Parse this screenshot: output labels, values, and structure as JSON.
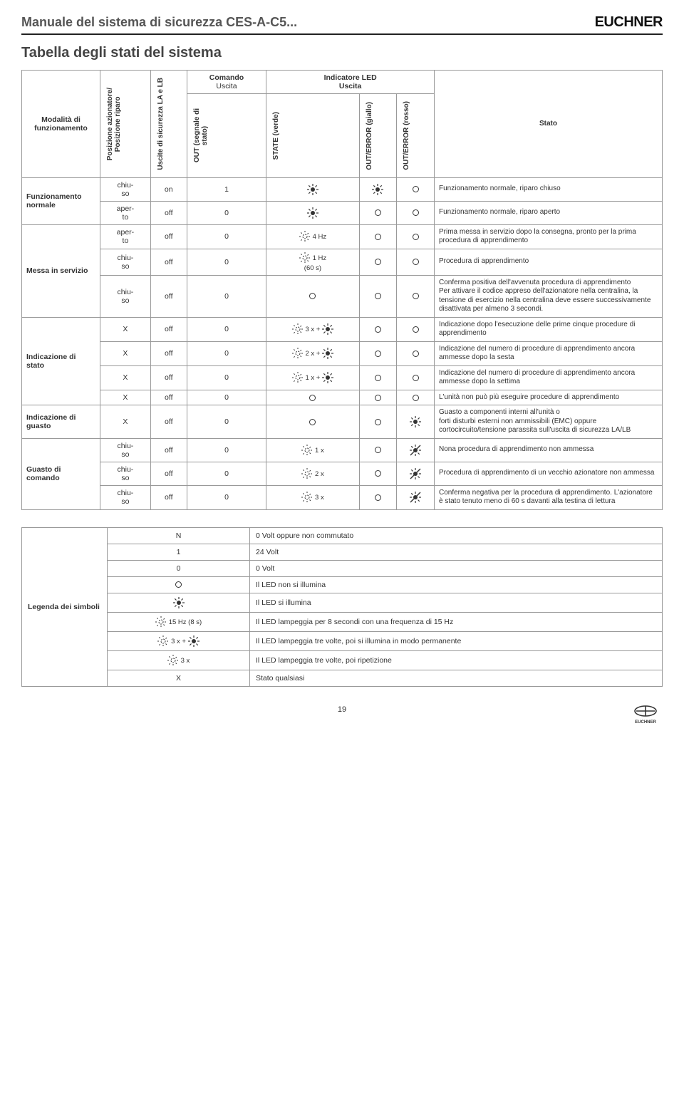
{
  "doc": {
    "title": "Manuale del sistema di sicurezza CES-A-C5...",
    "brand": "EUCHNER",
    "section_title": "Tabella degli stati del sistema",
    "page_number": "19"
  },
  "colors": {
    "text": "#222222",
    "border": "#999999",
    "header_rule": "#222222",
    "bg": "#ffffff"
  },
  "table_header": {
    "group_comando": "Comando",
    "group_uscita": "Uscita",
    "group_indicatore": "Indicatore LED\nUscita",
    "col_mode": "Modalità di funzionamento",
    "col_posizione": "Posizione azionatore/\nPosizione riparo",
    "col_uscite_sic": "Uscite di sicurezza LA e LB",
    "col_out_signal": "OUT (segnale di\nstato)",
    "col_state_verde": "STATE (verde)",
    "col_out_err_giallo": "OUT/ERROR (giallo)",
    "col_out_err_rosso": "OUT/ERROR (rosso)",
    "col_stato": "Stato"
  },
  "modes": {
    "funzionamento": "Funzionamento normale",
    "messa": "Messa in servizio",
    "ind_stato": "Indicazione di stato",
    "ind_guasto": "Indicazione di guasto",
    "guasto_comando": "Guasto di comando"
  },
  "rows": [
    {
      "mode": "funzionamento",
      "pos": "chiuso",
      "la_lb": "on",
      "out": "1",
      "state": "sun",
      "giallo": "sun",
      "rosso": "circ",
      "stato": "Funzionamento normale, riparo chiuso"
    },
    {
      "mode": "funzionamento",
      "pos": "aperto",
      "la_lb": "off",
      "out": "0",
      "state": "sun",
      "giallo": "circ",
      "rosso": "circ",
      "stato": "Funzionamento normale, riparo aperto"
    },
    {
      "mode": "messa",
      "pos": "aperto",
      "la_lb": "off",
      "out": "0",
      "state": "dsun",
      "state_extra": "4 Hz",
      "giallo": "circ",
      "rosso": "circ",
      "stato": "Prima messa in servizio dopo la consegna, pronto per la prima procedura di apprendimento"
    },
    {
      "mode": "messa",
      "pos": "chiuso",
      "la_lb": "off",
      "out": "0",
      "state": "dsun",
      "state_extra": "1 Hz\n(60 s)",
      "giallo": "circ",
      "rosso": "circ",
      "stato": "Procedura di apprendimento"
    },
    {
      "mode": "messa",
      "pos": "chiuso",
      "la_lb": "off",
      "out": "0",
      "state": "circ",
      "giallo": "circ",
      "rosso": "circ",
      "stato": "Conferma positiva dell'avvenuta procedura di apprendimento\nPer attivare il codice appreso dell'azionatore nella centralina, la tensione di esercizio nella centralina deve essere successivamente disattivata per almeno 3 secondi."
    },
    {
      "mode": "ind_stato",
      "pos": "X",
      "la_lb": "off",
      "out": "0",
      "state": "dsun_plus",
      "state_extra": "3 x +",
      "giallo": "circ",
      "rosso": "circ",
      "stato": "Indicazione dopo l'esecuzione delle prime cinque procedure di apprendimento"
    },
    {
      "mode": "ind_stato",
      "pos": "X",
      "la_lb": "off",
      "out": "0",
      "state": "dsun_plus",
      "state_extra": "2 x +",
      "giallo": "circ",
      "rosso": "circ",
      "stato": "Indicazione del numero di procedure di apprendimento ancora ammesse dopo la sesta"
    },
    {
      "mode": "ind_stato",
      "pos": "X",
      "la_lb": "off",
      "out": "0",
      "state": "dsun_plus",
      "state_extra": "1 x +",
      "giallo": "circ",
      "rosso": "circ",
      "stato": "Indicazione del numero di procedure di apprendimento ancora ammesse dopo la settima"
    },
    {
      "mode": "ind_stato",
      "pos": "X",
      "la_lb": "off",
      "out": "0",
      "state": "circ",
      "giallo": "circ",
      "rosso": "circ",
      "stato": "L'unità non può più eseguire procedure di apprendimento"
    },
    {
      "mode": "ind_guasto",
      "pos": "X",
      "la_lb": "off",
      "out": "0",
      "state": "circ",
      "giallo": "circ",
      "rosso": "sun",
      "stato": "Guasto a componenti interni all'unità o\nforti disturbi esterni non ammissibili (EMC) oppure cortocircuito/tensione parassita sull'uscita di sicurezza LA/LB"
    },
    {
      "mode": "guasto_comando",
      "pos": "chiuso",
      "la_lb": "off",
      "out": "0",
      "state": "dsun",
      "state_extra": "1 x",
      "giallo": "circ",
      "rosso": "sun_slash",
      "stato": "Nona procedura di apprendimento non ammessa"
    },
    {
      "mode": "guasto_comando",
      "pos": "chiuso",
      "la_lb": "off",
      "out": "0",
      "state": "dsun",
      "state_extra": "2 x",
      "giallo": "circ",
      "rosso": "sun_slash",
      "stato": "Procedura di apprendimento di un vecchio azionatore non ammessa"
    },
    {
      "mode": "guasto_comando",
      "pos": "chiuso",
      "la_lb": "off",
      "out": "0",
      "state": "dsun",
      "state_extra": "3 x",
      "giallo": "circ",
      "rosso": "sun_slash",
      "stato": "Conferma negativa per la procedura di apprendimento. L'azionatore è stato tenuto meno di 60 s davanti alla testina di lettura"
    }
  ],
  "legend": {
    "label": "Legenda dei simboli",
    "items": [
      {
        "sym": "N",
        "desc": "0 Volt oppure non commutato"
      },
      {
        "sym": "1",
        "desc": "24 Volt"
      },
      {
        "sym": "0",
        "desc": "0 Volt"
      },
      {
        "sym": "circ",
        "desc": "Il LED non si illumina"
      },
      {
        "sym": "sun",
        "desc": "Il LED si illumina"
      },
      {
        "sym": "dsun",
        "sym_extra": "15 Hz (8 s)",
        "desc": "Il LED lampeggia per 8 secondi con una frequenza di 15 Hz"
      },
      {
        "sym": "dsun_plus",
        "sym_extra": "3 x +",
        "desc": "Il LED lampeggia tre volte, poi si illumina in modo permanente"
      },
      {
        "sym": "dsun",
        "sym_extra": "3 x",
        "desc": "Il LED lampeggia tre volte, poi ripetizione"
      },
      {
        "sym": "X",
        "desc": "Stato qualsiasi"
      }
    ]
  }
}
